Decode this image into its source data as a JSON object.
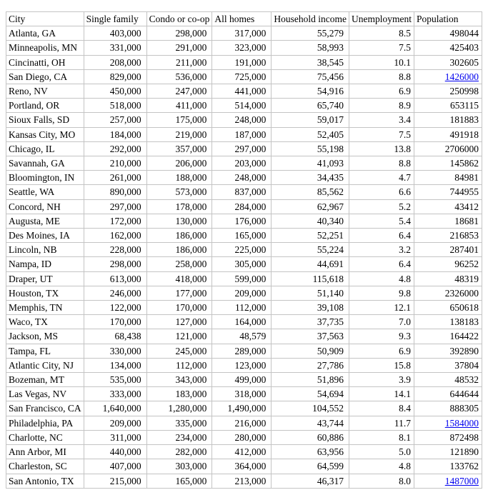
{
  "colors": {
    "background": "#ffffff",
    "text": "#000000",
    "grid_border": "#c4c4c4",
    "link_blue": "#0000EE"
  },
  "chart_data": {
    "type": "table",
    "columns": [
      "City",
      "Single family",
      "Condo or co-op",
      "All homes",
      "Household income",
      "Unemployment",
      "Population"
    ],
    "rows": [
      {
        "city": "Atlanta, GA",
        "single_family": "403,000",
        "condo_or_coop": "298,000",
        "all_homes": "317,000",
        "household_income": "55,279",
        "unemployment": "8.5",
        "population": "498044",
        "population_is_link": false
      },
      {
        "city": "Minneapolis, MN",
        "single_family": "331,000",
        "condo_or_coop": "291,000",
        "all_homes": "323,000",
        "household_income": "58,993",
        "unemployment": "7.5",
        "population": "425403",
        "population_is_link": false
      },
      {
        "city": "Cincinatti, OH",
        "single_family": "208,000",
        "condo_or_coop": "211,000",
        "all_homes": "191,000",
        "household_income": "38,545",
        "unemployment": "10.1",
        "population": "302605",
        "population_is_link": false
      },
      {
        "city": "San Diego, CA",
        "single_family": "829,000",
        "condo_or_coop": "536,000",
        "all_homes": "725,000",
        "household_income": "75,456",
        "unemployment": "8.8",
        "population": "1426000",
        "population_is_link": true
      },
      {
        "city": "Reno, NV",
        "single_family": "450,000",
        "condo_or_coop": "247,000",
        "all_homes": "441,000",
        "household_income": "54,916",
        "unemployment": "6.9",
        "population": "250998",
        "population_is_link": false
      },
      {
        "city": "Portland, OR",
        "single_family": "518,000",
        "condo_or_coop": "411,000",
        "all_homes": "514,000",
        "household_income": "65,740",
        "unemployment": "8.9",
        "population": "653115",
        "population_is_link": false
      },
      {
        "city": "Sioux Falls, SD",
        "single_family": "257,000",
        "condo_or_coop": "175,000",
        "all_homes": "248,000",
        "household_income": "59,017",
        "unemployment": "3.4",
        "population": "181883",
        "population_is_link": false
      },
      {
        "city": "Kansas City, MO",
        "single_family": "184,000",
        "condo_or_coop": "219,000",
        "all_homes": "187,000",
        "household_income": "52,405",
        "unemployment": "7.5",
        "population": "491918",
        "population_is_link": false
      },
      {
        "city": "Chicago, IL",
        "single_family": "292,000",
        "condo_or_coop": "357,000",
        "all_homes": "297,000",
        "household_income": "55,198",
        "unemployment": "13.8",
        "population": "2706000",
        "population_is_link": false
      },
      {
        "city": "Savannah, GA",
        "single_family": "210,000",
        "condo_or_coop": "206,000",
        "all_homes": "203,000",
        "household_income": "41,093",
        "unemployment": "8.8",
        "population": "145862",
        "population_is_link": false
      },
      {
        "city": "Bloomington, IN",
        "single_family": "261,000",
        "condo_or_coop": "188,000",
        "all_homes": "248,000",
        "household_income": "34,435",
        "unemployment": "4.7",
        "population": "84981",
        "population_is_link": false
      },
      {
        "city": "Seattle, WA",
        "single_family": "890,000",
        "condo_or_coop": "573,000",
        "all_homes": "837,000",
        "household_income": "85,562",
        "unemployment": "6.6",
        "population": "744955",
        "population_is_link": false
      },
      {
        "city": "Concord, NH",
        "single_family": "297,000",
        "condo_or_coop": "178,000",
        "all_homes": "284,000",
        "household_income": "62,967",
        "unemployment": "5.2",
        "population": "43412",
        "population_is_link": false
      },
      {
        "city": "Augusta, ME",
        "single_family": "172,000",
        "condo_or_coop": "130,000",
        "all_homes": "176,000",
        "household_income": "40,340",
        "unemployment": "5.4",
        "population": "18681",
        "population_is_link": false
      },
      {
        "city": "Des Moines, IA",
        "single_family": "162,000",
        "condo_or_coop": "186,000",
        "all_homes": "165,000",
        "household_income": "52,251",
        "unemployment": "6.4",
        "population": "216853",
        "population_is_link": false
      },
      {
        "city": "Lincoln, NB",
        "single_family": "228,000",
        "condo_or_coop": "186,000",
        "all_homes": "225,000",
        "household_income": "55,224",
        "unemployment": "3.2",
        "population": "287401",
        "population_is_link": false
      },
      {
        "city": "Nampa, ID",
        "single_family": "298,000",
        "condo_or_coop": "258,000",
        "all_homes": "305,000",
        "household_income": "44,691",
        "unemployment": "6.4",
        "population": "96252",
        "population_is_link": false
      },
      {
        "city": "Draper, UT",
        "single_family": "613,000",
        "condo_or_coop": "418,000",
        "all_homes": "599,000",
        "household_income": "115,618",
        "unemployment": "4.8",
        "population": "48319",
        "population_is_link": false
      },
      {
        "city": "Houston, TX",
        "single_family": "246,000",
        "condo_or_coop": "177,000",
        "all_homes": "209,000",
        "household_income": "51,140",
        "unemployment": "9.8",
        "population": "2326000",
        "population_is_link": false
      },
      {
        "city": "Memphis, TN",
        "single_family": "122,000",
        "condo_or_coop": "170,000",
        "all_homes": "112,000",
        "household_income": "39,108",
        "unemployment": "12.1",
        "population": "650618",
        "population_is_link": false
      },
      {
        "city": "Waco, TX",
        "single_family": "170,000",
        "condo_or_coop": "127,000",
        "all_homes": "164,000",
        "household_income": "37,735",
        "unemployment": "7.0",
        "population": "138183",
        "population_is_link": false
      },
      {
        "city": "Jackson, MS",
        "single_family": "68,438",
        "condo_or_coop": "121,000",
        "all_homes": "48,579",
        "household_income": "37,563",
        "unemployment": "9.3",
        "population": "164422",
        "population_is_link": false
      },
      {
        "city": "Tampa, FL",
        "single_family": "330,000",
        "condo_or_coop": "245,000",
        "all_homes": "289,000",
        "household_income": "50,909",
        "unemployment": "6.9",
        "population": "392890",
        "population_is_link": false
      },
      {
        "city": "Atlantic City, NJ",
        "single_family": "134,000",
        "condo_or_coop": "112,000",
        "all_homes": "123,000",
        "household_income": "27,786",
        "unemployment": "15.8",
        "population": "37804",
        "population_is_link": false
      },
      {
        "city": "Bozeman, MT",
        "single_family": "535,000",
        "condo_or_coop": "343,000",
        "all_homes": "499,000",
        "household_income": "51,896",
        "unemployment": "3.9",
        "population": "48532",
        "population_is_link": false
      },
      {
        "city": "Las Vegas, NV",
        "single_family": "333,000",
        "condo_or_coop": "183,000",
        "all_homes": "318,000",
        "household_income": "54,694",
        "unemployment": "14.1",
        "population": "644644",
        "population_is_link": false
      },
      {
        "city": "San Francisco, CA",
        "single_family": "1,640,000",
        "condo_or_coop": "1,280,000",
        "all_homes": "1,490,000",
        "household_income": "104,552",
        "unemployment": "8.4",
        "population": "888305",
        "population_is_link": false
      },
      {
        "city": "Philadelphia, PA",
        "single_family": "209,000",
        "condo_or_coop": "335,000",
        "all_homes": "216,000",
        "household_income": "43,744",
        "unemployment": "11.7",
        "population": "1584000",
        "population_is_link": true
      },
      {
        "city": "Charlotte, NC",
        "single_family": "311,000",
        "condo_or_coop": "234,000",
        "all_homes": "280,000",
        "household_income": "60,886",
        "unemployment": "8.1",
        "population": "872498",
        "population_is_link": false
      },
      {
        "city": "Ann Arbor, MI",
        "single_family": "440,000",
        "condo_or_coop": "282,000",
        "all_homes": "412,000",
        "household_income": "63,956",
        "unemployment": "5.0",
        "population": "121890",
        "population_is_link": false
      },
      {
        "city": "Charleston, SC",
        "single_family": "407,000",
        "condo_or_coop": "303,000",
        "all_homes": "364,000",
        "household_income": "64,599",
        "unemployment": "4.8",
        "population": "133762",
        "population_is_link": false
      },
      {
        "city": "San Antonio, TX",
        "single_family": "215,000",
        "condo_or_coop": "165,000",
        "all_homes": "213,000",
        "household_income": "46,317",
        "unemployment": "8.0",
        "population": "1487000",
        "population_is_link": true
      }
    ]
  }
}
